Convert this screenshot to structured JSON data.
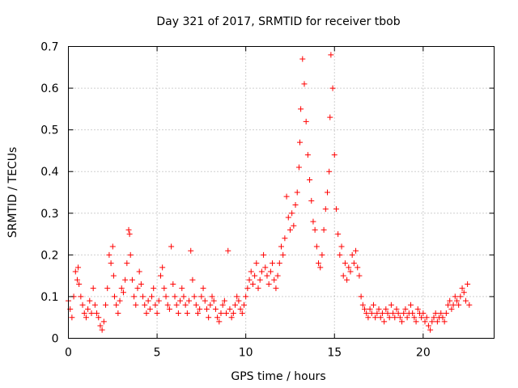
{
  "chart_data": {
    "type": "scatter",
    "title": "Day 321 of 2017, SRMTID for receiver tbob",
    "xlabel": "GPS time / hours",
    "ylabel": "SRMTID / TECUs",
    "xlim": [
      0,
      24
    ],
    "ylim": [
      0,
      0.7
    ],
    "x_ticks": [
      0,
      5,
      10,
      15,
      20
    ],
    "x_tick_labels": [
      "0",
      "5",
      "10",
      "15",
      "20"
    ],
    "y_ticks": [
      0,
      0.1,
      0.2,
      0.3,
      0.4,
      0.5,
      0.6,
      0.7
    ],
    "y_tick_labels": [
      "0",
      "0.1",
      "0.2",
      "0.3",
      "0.4",
      "0.5",
      "0.6",
      "0.7"
    ],
    "grid": true,
    "marker": "plus",
    "marker_color": "#ff0000",
    "series": [
      {
        "name": "SRMTID",
        "x": [
          0.0,
          0.1,
          0.2,
          0.3,
          0.4,
          0.5,
          0.55,
          0.6,
          0.7,
          0.8,
          0.9,
          1.0,
          1.1,
          1.2,
          1.3,
          1.4,
          1.5,
          1.6,
          1.7,
          1.8,
          1.9,
          2.0,
          2.1,
          2.2,
          2.3,
          2.4,
          2.5,
          2.55,
          2.6,
          2.7,
          2.8,
          2.9,
          3.0,
          3.1,
          3.2,
          3.3,
          3.4,
          3.45,
          3.5,
          3.6,
          3.7,
          3.8,
          3.9,
          4.0,
          4.1,
          4.2,
          4.3,
          4.4,
          4.5,
          4.6,
          4.7,
          4.8,
          4.9,
          5.0,
          5.1,
          5.2,
          5.3,
          5.4,
          5.5,
          5.6,
          5.7,
          5.8,
          5.9,
          6.0,
          6.1,
          6.2,
          6.3,
          6.4,
          6.5,
          6.6,
          6.7,
          6.8,
          6.9,
          7.0,
          7.1,
          7.2,
          7.3,
          7.4,
          7.5,
          7.6,
          7.7,
          7.8,
          7.9,
          8.0,
          8.1,
          8.2,
          8.3,
          8.4,
          8.5,
          8.6,
          8.7,
          8.8,
          8.9,
          9.0,
          9.1,
          9.2,
          9.3,
          9.4,
          9.5,
          9.6,
          9.7,
          9.8,
          9.9,
          10.0,
          10.1,
          10.2,
          10.3,
          10.4,
          10.5,
          10.6,
          10.7,
          10.8,
          10.9,
          11.0,
          11.1,
          11.2,
          11.3,
          11.4,
          11.5,
          11.6,
          11.7,
          11.8,
          11.9,
          12.0,
          12.1,
          12.2,
          12.3,
          12.4,
          12.5,
          12.6,
          12.7,
          12.8,
          12.9,
          13.0,
          13.05,
          13.1,
          13.2,
          13.3,
          13.4,
          13.5,
          13.6,
          13.7,
          13.8,
          13.9,
          14.0,
          14.1,
          14.2,
          14.3,
          14.4,
          14.5,
          14.6,
          14.7,
          14.75,
          14.8,
          14.9,
          15.0,
          15.1,
          15.2,
          15.3,
          15.4,
          15.5,
          15.6,
          15.7,
          15.8,
          15.9,
          16.0,
          16.1,
          16.2,
          16.3,
          16.4,
          16.5,
          16.6,
          16.7,
          16.8,
          16.9,
          17.0,
          17.1,
          17.2,
          17.3,
          17.4,
          17.5,
          17.6,
          17.7,
          17.8,
          17.9,
          18.0,
          18.1,
          18.2,
          18.3,
          18.4,
          18.5,
          18.6,
          18.7,
          18.8,
          18.9,
          19.0,
          19.1,
          19.2,
          19.3,
          19.4,
          19.5,
          19.6,
          19.7,
          19.8,
          19.9,
          20.0,
          20.1,
          20.2,
          20.3,
          20.4,
          20.5,
          20.6,
          20.7,
          20.8,
          20.9,
          21.0,
          21.1,
          21.2,
          21.3,
          21.4,
          21.5,
          21.6,
          21.7,
          21.8,
          21.9,
          22.0,
          22.1,
          22.2,
          22.3,
          22.4,
          22.5,
          22.6
        ],
        "y": [
          0.09,
          0.07,
          0.05,
          0.1,
          0.16,
          0.14,
          0.17,
          0.13,
          0.1,
          0.08,
          0.06,
          0.05,
          0.07,
          0.09,
          0.06,
          0.12,
          0.08,
          0.06,
          0.05,
          0.03,
          0.02,
          0.04,
          0.08,
          0.12,
          0.2,
          0.18,
          0.22,
          0.15,
          0.1,
          0.08,
          0.06,
          0.09,
          0.12,
          0.11,
          0.14,
          0.18,
          0.26,
          0.25,
          0.2,
          0.14,
          0.1,
          0.08,
          0.12,
          0.16,
          0.13,
          0.1,
          0.08,
          0.06,
          0.09,
          0.07,
          0.1,
          0.12,
          0.08,
          0.06,
          0.09,
          0.15,
          0.17,
          0.12,
          0.1,
          0.08,
          0.07,
          0.22,
          0.13,
          0.1,
          0.08,
          0.06,
          0.09,
          0.12,
          0.1,
          0.08,
          0.06,
          0.09,
          0.21,
          0.14,
          0.1,
          0.08,
          0.06,
          0.07,
          0.1,
          0.12,
          0.09,
          0.07,
          0.05,
          0.08,
          0.1,
          0.09,
          0.07,
          0.05,
          0.04,
          0.06,
          0.08,
          0.09,
          0.06,
          0.21,
          0.07,
          0.05,
          0.06,
          0.08,
          0.1,
          0.09,
          0.07,
          0.06,
          0.08,
          0.1,
          0.12,
          0.14,
          0.16,
          0.13,
          0.15,
          0.18,
          0.12,
          0.14,
          0.16,
          0.2,
          0.17,
          0.15,
          0.13,
          0.16,
          0.18,
          0.14,
          0.12,
          0.15,
          0.18,
          0.22,
          0.2,
          0.24,
          0.34,
          0.29,
          0.26,
          0.3,
          0.27,
          0.32,
          0.35,
          0.41,
          0.47,
          0.55,
          0.67,
          0.61,
          0.52,
          0.44,
          0.38,
          0.33,
          0.28,
          0.26,
          0.22,
          0.18,
          0.17,
          0.2,
          0.26,
          0.31,
          0.35,
          0.4,
          0.53,
          0.68,
          0.6,
          0.44,
          0.31,
          0.25,
          0.2,
          0.22,
          0.15,
          0.18,
          0.14,
          0.17,
          0.16,
          0.2,
          0.18,
          0.21,
          0.17,
          0.15,
          0.1,
          0.08,
          0.07,
          0.06,
          0.05,
          0.07,
          0.06,
          0.08,
          0.05,
          0.06,
          0.07,
          0.05,
          0.06,
          0.04,
          0.07,
          0.06,
          0.05,
          0.08,
          0.06,
          0.05,
          0.07,
          0.06,
          0.05,
          0.04,
          0.06,
          0.07,
          0.05,
          0.06,
          0.08,
          0.06,
          0.05,
          0.04,
          0.07,
          0.06,
          0.05,
          0.06,
          0.04,
          0.05,
          0.03,
          0.02,
          0.04,
          0.05,
          0.06,
          0.04,
          0.05,
          0.06,
          0.05,
          0.04,
          0.06,
          0.08,
          0.09,
          0.07,
          0.08,
          0.1,
          0.09,
          0.08,
          0.1,
          0.12,
          0.11,
          0.09,
          0.13,
          0.08
        ]
      }
    ]
  }
}
